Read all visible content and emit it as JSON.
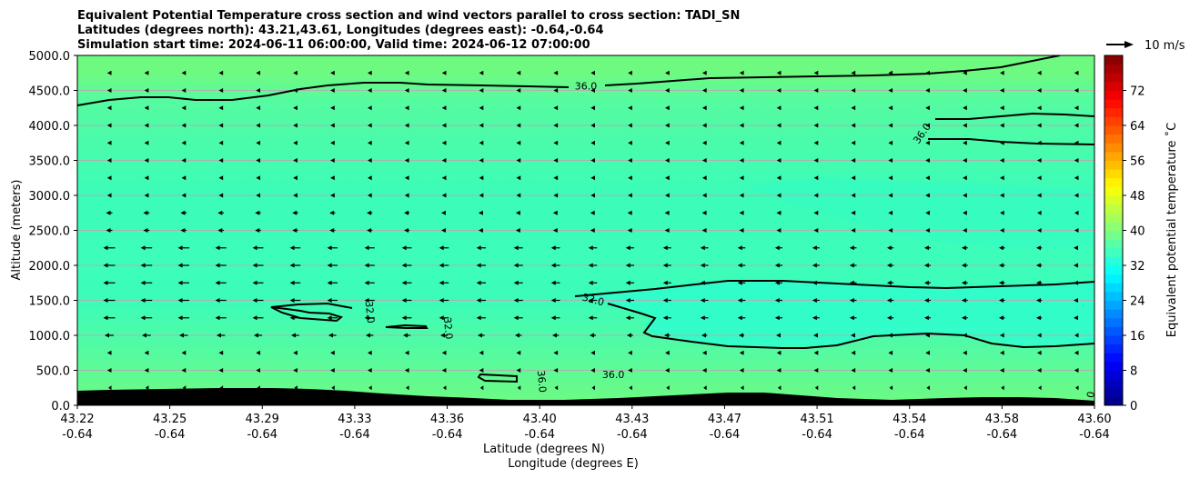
{
  "chart_data": {
    "type": "contour",
    "title_lines": [
      "Equivalent Potential Temperature cross section and wind vectors parallel to cross section: TADI_SN",
      "Latitudes (degrees north): 43.21,43.61, Longitudes (degrees east): -0.64,-0.64",
      "Simulation start time: 2024-06-11 06:00:00, Valid time: 2024-06-12 07:00:00"
    ],
    "ylabel": "Altitude (meters)",
    "xlabel_lines": [
      "Latitude (degrees N)",
      "Longitude (degrees E)"
    ],
    "ylim": [
      0,
      5000
    ],
    "xlim": [
      43.22,
      43.6
    ],
    "yticks": [
      {
        "value": 0,
        "label": "0.0"
      },
      {
        "value": 500,
        "label": "500.0"
      },
      {
        "value": 1000,
        "label": "1000.0"
      },
      {
        "value": 1500,
        "label": "1500.0"
      },
      {
        "value": 2000,
        "label": "2000.0"
      },
      {
        "value": 2500,
        "label": "2500.0"
      },
      {
        "value": 3000,
        "label": "3000.0"
      },
      {
        "value": 3500,
        "label": "3500.0"
      },
      {
        "value": 4000,
        "label": "4000.0"
      },
      {
        "value": 4500,
        "label": "4500.0"
      },
      {
        "value": 5000,
        "label": "5000.0"
      }
    ],
    "xticks": [
      {
        "lat": "43.22",
        "lon": "-0.64"
      },
      {
        "lat": "43.25",
        "lon": "-0.64"
      },
      {
        "lat": "43.29",
        "lon": "-0.64"
      },
      {
        "lat": "43.33",
        "lon": "-0.64"
      },
      {
        "lat": "43.36",
        "lon": "-0.64"
      },
      {
        "lat": "43.40",
        "lon": "-0.64"
      },
      {
        "lat": "43.43",
        "lon": "-0.64"
      },
      {
        "lat": "43.47",
        "lon": "-0.64"
      },
      {
        "lat": "43.51",
        "lon": "-0.64"
      },
      {
        "lat": "43.54",
        "lon": "-0.64"
      },
      {
        "lat": "43.58",
        "lon": "-0.64"
      },
      {
        "lat": "43.60",
        "lon": "-0.64"
      }
    ],
    "grid": "horizontal",
    "colorbar": {
      "label": "Equivalent potential temperature $^\\circ$C",
      "display_label": "Equivalent potential temperature ˚C",
      "range": [
        0,
        80
      ],
      "step": 2,
      "ticks": [
        "0",
        "8",
        "16",
        "24",
        "32",
        "40",
        "48",
        "56",
        "64",
        "72"
      ],
      "colormap": "jet"
    },
    "wind_key": {
      "label": "10 m/s",
      "speed": 10
    },
    "contour_labels": [
      {
        "text": "36.0",
        "x_frac": 0.5,
        "alt": 4550,
        "rotate": 0
      },
      {
        "text": "36.0",
        "x_frac": 0.831,
        "alt": 3880,
        "rotate": -55
      },
      {
        "text": "32.0",
        "x_frac": 0.287,
        "alt": 1330,
        "rotate": 85
      },
      {
        "text": "32.0",
        "x_frac": 0.364,
        "alt": 1100,
        "rotate": 85
      },
      {
        "text": "32.0",
        "x_frac": 0.507,
        "alt": 1500,
        "rotate": 15
      },
      {
        "text": "36.0",
        "x_frac": 0.527,
        "alt": 430,
        "rotate": 0
      },
      {
        "text": "36.0",
        "x_frac": 0.456,
        "alt": 340,
        "rotate": 85
      },
      {
        "text": "0",
        "x_frac": 0.997,
        "alt": 150,
        "rotate": -80
      }
    ],
    "theta_e_field": [
      {
        "x_frac": 0.0,
        "alt": 4800,
        "value": 38
      },
      {
        "x_frac": 0.5,
        "alt": 2500,
        "value": 34
      },
      {
        "x_frac": 0.6,
        "alt": 1300,
        "value": 31
      },
      {
        "x_frac": 0.5,
        "alt": 300,
        "value": 37
      }
    ],
    "wind_vectors": {
      "direction": "southward (along section)",
      "strongest_layer_alt": [
        1200,
        2300
      ]
    }
  }
}
